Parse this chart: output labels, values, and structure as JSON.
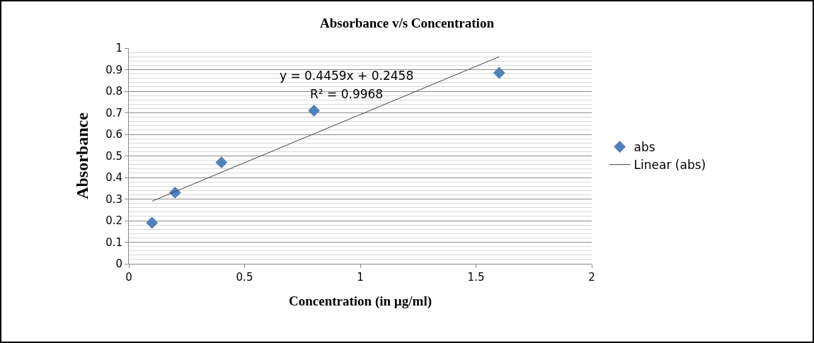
{
  "chart_data": {
    "type": "scatter",
    "title": "Absorbance v/s Concentration",
    "xlabel": "Concentration (in µg/ml)",
    "ylabel": "Absorbance",
    "x": [
      0.1,
      0.2,
      0.4,
      0.8,
      1.6
    ],
    "series": [
      {
        "name": "abs",
        "type": "scatter",
        "color": "#4f81bd",
        "marker": "diamond",
        "values": [
          0.19,
          0.33,
          0.47,
          0.71,
          0.885
        ]
      },
      {
        "name": "Linear (abs)",
        "type": "line",
        "color": "#404040",
        "marker": "none",
        "line_style": "solid",
        "x": [
          0.1,
          1.6
        ],
        "values": [
          0.29,
          0.96
        ]
      }
    ],
    "annotations": [
      "y = 0.4459x + 0.2458",
      "R² = 0.9968"
    ],
    "xlim": [
      0,
      2
    ],
    "xticks": [
      0,
      0.5,
      1,
      1.5,
      2
    ],
    "ylim": [
      0,
      1
    ],
    "yticks": [
      0,
      0.1,
      0.2,
      0.3,
      0.4,
      0.5,
      0.6,
      0.7,
      0.8,
      0.9,
      1
    ],
    "grid": "y",
    "legend": "right"
  }
}
